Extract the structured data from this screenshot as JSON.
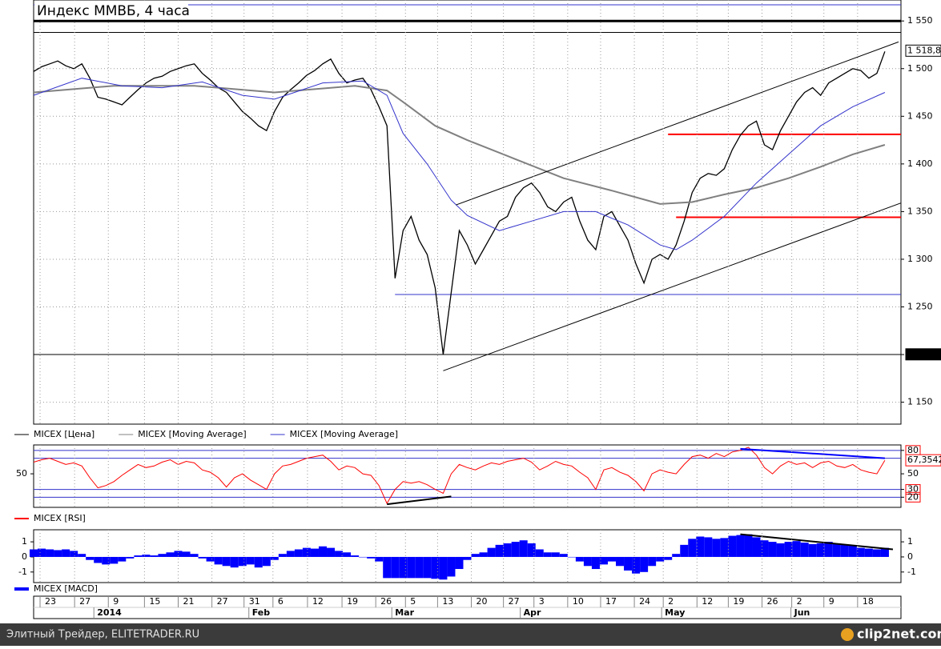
{
  "title": "Индекс ММВБ, 4 часа",
  "chart_data": [
    {
      "type": "line",
      "x": [
        0,
        1,
        2,
        3,
        4,
        5,
        6,
        7,
        8,
        9,
        10,
        11,
        12,
        13,
        14,
        15,
        16,
        17,
        18,
        19,
        20,
        21,
        22,
        23,
        24,
        25,
        26,
        27,
        28,
        29,
        30,
        31,
        32,
        33,
        34,
        35,
        36,
        37,
        38,
        39,
        40,
        41,
        42,
        43,
        44,
        45,
        46,
        47,
        48,
        49,
        50,
        51,
        52,
        53,
        54,
        55,
        56,
        57,
        58,
        59,
        60,
        61,
        62,
        63,
        64,
        65,
        66,
        67,
        68,
        69,
        70,
        71,
        72,
        73,
        74,
        75,
        76,
        77,
        78,
        79,
        80,
        81,
        82,
        83,
        84,
        85,
        86,
        87,
        88,
        89,
        90,
        91,
        92,
        93,
        94,
        95,
        96,
        97,
        98,
        99,
        100,
        101,
        102,
        103,
        104,
        105,
        106
      ],
      "xlim": [
        0,
        108
      ],
      "ylim": [
        1127,
        1572
      ],
      "yticks": [
        {
          "value": 1550,
          "label": "1 550"
        },
        {
          "value": 1500,
          "label": "1 500"
        },
        {
          "value": 1450,
          "label": "1 450"
        },
        {
          "value": 1400,
          "label": "1 400"
        },
        {
          "value": 1350,
          "label": "1 350"
        },
        {
          "value": 1300,
          "label": "1 300"
        },
        {
          "value": 1250,
          "label": "1 250"
        },
        {
          "value": 1200,
          "label": "1 200"
        },
        {
          "value": 1150,
          "label": "1 150"
        }
      ],
      "grid": true,
      "series": [
        {
          "name": "MICEX [Цена]",
          "color": "#000000",
          "values": [
            1497,
            1502,
            1505,
            1508,
            1503,
            1500,
            1505,
            1490,
            1470,
            1468,
            1465,
            1462,
            1470,
            1478,
            1485,
            1490,
            1492,
            1497,
            1500,
            1503,
            1505,
            1495,
            1488,
            1480,
            1475,
            1465,
            1455,
            1448,
            1440,
            1435,
            1455,
            1470,
            1478,
            1485,
            1493,
            1498,
            1505,
            1510,
            1495,
            1485,
            1488,
            1490,
            1478,
            1460,
            1440,
            1280,
            1330,
            1345,
            1320,
            1305,
            1270,
            1200,
            1265,
            1330,
            1315,
            1295,
            1310,
            1325,
            1340,
            1345,
            1365,
            1375,
            1380,
            1370,
            1355,
            1350,
            1360,
            1365,
            1340,
            1320,
            1310,
            1345,
            1350,
            1335,
            1320,
            1295,
            1275,
            1300,
            1305,
            1300,
            1315,
            1340,
            1370,
            1385,
            1390,
            1388,
            1395,
            1415,
            1430,
            1440,
            1445,
            1420,
            1415,
            1435,
            1450,
            1465,
            1475,
            1480,
            1472,
            1485,
            1490,
            1495,
            1500,
            1498,
            1490,
            1495,
            1518
          ]
        },
        {
          "name": "MICEX [Moving Average]",
          "color": "#808080",
          "x": [
            0,
            10,
            20,
            30,
            40,
            44,
            46,
            50,
            54,
            60,
            66,
            72,
            78,
            82,
            86,
            90,
            94,
            98,
            102,
            106
          ],
          "values": [
            1475,
            1482,
            1482,
            1475,
            1482,
            1477,
            1465,
            1440,
            1425,
            1405,
            1385,
            1372,
            1358,
            1360,
            1368,
            1375,
            1385,
            1397,
            1410,
            1420
          ]
        },
        {
          "name": "MICEX [Moving Average]",
          "color": "#3333cc",
          "x": [
            0,
            6,
            11,
            16,
            21,
            26,
            30,
            36,
            41,
            44,
            46,
            49,
            52,
            54,
            58,
            62,
            66,
            70,
            74,
            78,
            80,
            82,
            86,
            90,
            94,
            98,
            102,
            106
          ],
          "values": [
            1472,
            1490,
            1482,
            1480,
            1486,
            1472,
            1468,
            1485,
            1487,
            1472,
            1432,
            1400,
            1362,
            1346,
            1330,
            1340,
            1350,
            1350,
            1336,
            1315,
            1310,
            1320,
            1345,
            1380,
            1410,
            1440,
            1460,
            1475
          ]
        }
      ],
      "hlines": [
        {
          "value": 1567,
          "color": "#3333cc"
        },
        {
          "value": 1550,
          "color": "#000000",
          "bold": true
        },
        {
          "value": 1538,
          "color": "#000000"
        },
        {
          "value": 1431,
          "color": "#ff0000",
          "from": 79
        },
        {
          "value": 1344,
          "color": "#ff0000",
          "from": 80
        },
        {
          "value": 1263,
          "color": "#3333cc",
          "from": 45
        },
        {
          "value": 1200,
          "color": "#000000"
        }
      ],
      "trendlines": [
        {
          "x": [
            51,
            108
          ],
          "values": [
            1183,
            1359
          ],
          "color": "#000000"
        },
        {
          "x": [
            52.6,
            107.7
          ],
          "values": [
            1357,
            1528
          ],
          "color": "#000000"
        }
      ],
      "tags": [
        {
          "value": 1518.83,
          "label": "1 518,83",
          "style": "outline",
          "color": "#000000"
        },
        {
          "value": 1200.22,
          "label": "1200,22",
          "style": "dark",
          "color": "#000000"
        }
      ]
    },
    {
      "type": "line",
      "x": [
        0,
        1,
        2,
        3,
        4,
        5,
        6,
        7,
        8,
        9,
        10,
        11,
        12,
        13,
        14,
        15,
        16,
        17,
        18,
        19,
        20,
        21,
        22,
        23,
        24,
        25,
        26,
        27,
        28,
        29,
        30,
        31,
        32,
        33,
        34,
        35,
        36,
        37,
        38,
        39,
        40,
        41,
        42,
        43,
        44,
        45,
        46,
        47,
        48,
        49,
        50,
        51,
        52,
        53,
        54,
        55,
        56,
        57,
        58,
        59,
        60,
        61,
        62,
        63,
        64,
        65,
        66,
        67,
        68,
        69,
        70,
        71,
        72,
        73,
        74,
        75,
        76,
        77,
        78,
        79,
        80,
        81,
        82,
        83,
        84,
        85,
        86,
        87,
        88,
        89,
        90,
        91,
        92,
        93,
        94,
        95,
        96,
        97,
        98,
        99,
        100,
        101,
        102,
        103,
        104,
        105,
        106
      ],
      "xlim": [
        0,
        108
      ],
      "ylim": [
        7,
        87
      ],
      "yticks": [
        80,
        50,
        30,
        20
      ],
      "left_yticks": [
        50
      ],
      "tick_boxes": "#ff0000",
      "series": [
        {
          "name": "MICEX [RSI]",
          "color": "#ff0000",
          "values": [
            65,
            68,
            70,
            66,
            62,
            64,
            60,
            45,
            32,
            35,
            40,
            48,
            55,
            62,
            58,
            60,
            65,
            68,
            62,
            66,
            64,
            55,
            52,
            45,
            33,
            45,
            50,
            42,
            36,
            30,
            50,
            60,
            62,
            66,
            70,
            72,
            74,
            66,
            55,
            60,
            58,
            50,
            48,
            35,
            12,
            30,
            40,
            38,
            40,
            36,
            30,
            25,
            50,
            62,
            58,
            55,
            60,
            64,
            62,
            66,
            68,
            70,
            65,
            55,
            60,
            66,
            62,
            60,
            52,
            45,
            30,
            55,
            58,
            52,
            48,
            40,
            28,
            50,
            55,
            52,
            50,
            62,
            72,
            74,
            70,
            76,
            72,
            78,
            80,
            84,
            74,
            58,
            50,
            60,
            66,
            62,
            64,
            58,
            64,
            66,
            60,
            58,
            62,
            55,
            52,
            50,
            67.35
          ]
        }
      ],
      "hlines": [
        {
          "value": 80,
          "color": "#3333cc"
        },
        {
          "value": 70,
          "color": "#3333cc"
        },
        {
          "value": 30,
          "color": "#3333cc"
        },
        {
          "value": 20,
          "color": "#3333cc"
        }
      ],
      "trendlines": [
        {
          "x": [
            44,
            52
          ],
          "values": [
            11,
            21
          ],
          "color": "#000000"
        },
        {
          "x": [
            88,
            106
          ],
          "values": [
            82,
            70
          ],
          "color": "#0000ff"
        }
      ],
      "tags": [
        {
          "value": 67.3542,
          "label": "67,3542",
          "style": "outline",
          "color": "#ff0000"
        }
      ]
    },
    {
      "type": "bar",
      "x": [
        0,
        1,
        2,
        3,
        4,
        5,
        6,
        7,
        8,
        9,
        10,
        11,
        12,
        13,
        14,
        15,
        16,
        17,
        18,
        19,
        20,
        21,
        22,
        23,
        24,
        25,
        26,
        27,
        28,
        29,
        30,
        31,
        32,
        33,
        34,
        35,
        36,
        37,
        38,
        39,
        40,
        41,
        42,
        43,
        44,
        45,
        46,
        47,
        48,
        49,
        50,
        51,
        52,
        53,
        54,
        55,
        56,
        57,
        58,
        59,
        60,
        61,
        62,
        63,
        64,
        65,
        66,
        67,
        68,
        69,
        70,
        71,
        72,
        73,
        74,
        75,
        76,
        77,
        78,
        79,
        80,
        81,
        82,
        83,
        84,
        85,
        86,
        87,
        88,
        89,
        90,
        91,
        92,
        93,
        94,
        95,
        96,
        97,
        98,
        99,
        100,
        101,
        102,
        103,
        104,
        105,
        106
      ],
      "xlim": [
        0,
        108
      ],
      "ylim": [
        -1.7,
        1.8
      ],
      "yticks": [
        1,
        0,
        -1
      ],
      "left_yticks": [
        1,
        0,
        -1
      ],
      "series": [
        {
          "name": "MICEX [MACD]",
          "color": "#0000ff",
          "values": [
            0.5,
            0.55,
            0.5,
            0.45,
            0.5,
            0.4,
            0.2,
            -0.2,
            -0.4,
            -0.5,
            -0.45,
            -0.3,
            -0.1,
            0.1,
            0.15,
            0.1,
            0.2,
            0.3,
            0.4,
            0.35,
            0.2,
            -0.1,
            -0.3,
            -0.5,
            -0.6,
            -0.7,
            -0.6,
            -0.5,
            -0.7,
            -0.6,
            -0.2,
            0.2,
            0.4,
            0.5,
            0.6,
            0.55,
            0.7,
            0.6,
            0.4,
            0.3,
            0.1,
            0.0,
            -0.1,
            -0.3,
            -1.4,
            -1.4,
            -1.4,
            -1.4,
            -1.4,
            -1.4,
            -1.45,
            -1.5,
            -1.3,
            -0.8,
            -0.2,
            0.2,
            0.3,
            0.6,
            0.8,
            0.9,
            1.0,
            1.1,
            0.9,
            0.5,
            0.3,
            0.3,
            0.2,
            0.0,
            -0.3,
            -0.6,
            -0.8,
            -0.5,
            -0.3,
            -0.6,
            -0.9,
            -1.1,
            -1.0,
            -0.6,
            -0.3,
            -0.2,
            0.2,
            0.8,
            1.2,
            1.35,
            1.3,
            1.2,
            1.25,
            1.4,
            1.45,
            1.5,
            1.3,
            1.1,
            1.0,
            0.9,
            1.0,
            1.05,
            0.95,
            0.85,
            0.9,
            1.0,
            0.9,
            0.8,
            0.75,
            0.6,
            0.55,
            0.5,
            0.6
          ]
        }
      ],
      "trendlines": [
        {
          "x": [
            88,
            107
          ],
          "values": [
            1.5,
            0.5
          ],
          "color": "#000000"
        }
      ],
      "xticks": [
        {
          "value": 0.8,
          "label": "23"
        },
        {
          "value": 5.1,
          "label": "27"
        },
        {
          "value": 9.3,
          "label": "9"
        },
        {
          "value": 13.8,
          "label": "15"
        },
        {
          "value": 18,
          "label": "21"
        },
        {
          "value": 22.2,
          "label": "27"
        },
        {
          "value": 26.2,
          "label": "31"
        },
        {
          "value": 29.8,
          "label": "6"
        },
        {
          "value": 34.1,
          "label": "12"
        },
        {
          "value": 38.4,
          "label": "19"
        },
        {
          "value": 42.6,
          "label": "26"
        },
        {
          "value": 46.3,
          "label": "5"
        },
        {
          "value": 50.3,
          "label": "13"
        },
        {
          "value": 54.5,
          "label": "20"
        },
        {
          "value": 58.5,
          "label": "27"
        },
        {
          "value": 62.3,
          "label": "3"
        },
        {
          "value": 66.5,
          "label": "10"
        },
        {
          "value": 70.6,
          "label": "17"
        },
        {
          "value": 74.8,
          "label": "24"
        },
        {
          "value": 78.4,
          "label": "2"
        },
        {
          "value": 82.6,
          "label": "12"
        },
        {
          "value": 86.5,
          "label": "19"
        },
        {
          "value": 90.7,
          "label": "26"
        },
        {
          "value": 94.4,
          "label": "2"
        },
        {
          "value": 98.4,
          "label": "9"
        },
        {
          "value": 102.6,
          "label": "18"
        }
      ],
      "month_ticks": [
        {
          "value": 7.5,
          "label": "2014"
        },
        {
          "value": 26.8,
          "label": "Feb"
        },
        {
          "value": 44.6,
          "label": "Mar"
        },
        {
          "value": 60.6,
          "label": "Apr"
        },
        {
          "value": 78.2,
          "label": "May"
        },
        {
          "value": 94.3,
          "label": "Jun"
        }
      ]
    }
  ],
  "footer": {
    "left": "Элитный Трейдер, ELITETRADER.RU",
    "right": "clip2net.com"
  }
}
